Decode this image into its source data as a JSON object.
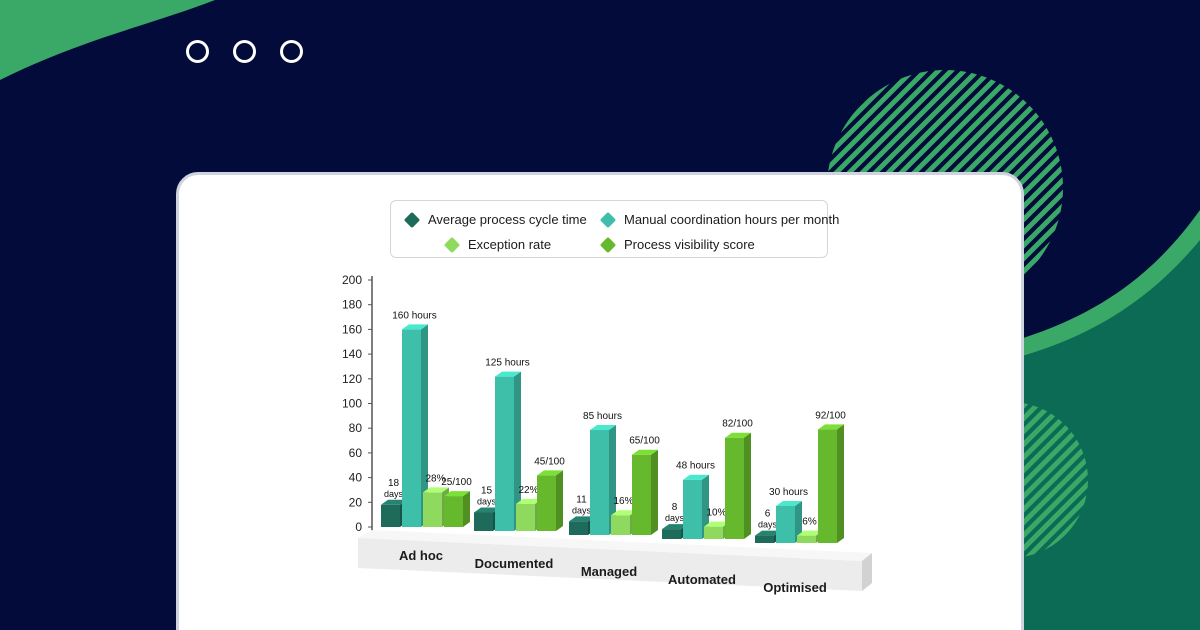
{
  "colors": {
    "background": "#030b3a",
    "accent_green": "#3aa866",
    "teal_block": "#0b6b55",
    "series": [
      "#1e6b5c",
      "#3dbfa9",
      "#8fd95e",
      "#66b82c"
    ]
  },
  "window": {
    "dots": [
      "circle",
      "circle",
      "circle"
    ]
  },
  "chart_data": {
    "type": "bar",
    "categories": [
      "Ad hoc",
      "Documented",
      "Managed",
      "Automated",
      "Optimised"
    ],
    "ylim": [
      0,
      200
    ],
    "yticks": [
      0,
      20,
      40,
      60,
      80,
      100,
      120,
      140,
      160,
      180,
      200
    ],
    "series": [
      {
        "name": "Average process cycle time",
        "values": [
          18,
          15,
          11,
          8,
          6
        ],
        "labels": [
          "18 days",
          "15 days",
          "11 days",
          "8 days",
          "6 days"
        ]
      },
      {
        "name": "Manual coordination hours per month",
        "values": [
          160,
          125,
          85,
          48,
          30
        ],
        "labels": [
          "160 hours",
          "125 hours",
          "85 hours",
          "48 hours",
          "30 hours"
        ]
      },
      {
        "name": "Exception rate",
        "values": [
          28,
          22,
          16,
          10,
          6
        ],
        "labels": [
          "28%",
          "22%",
          "16%",
          "10%",
          "6%"
        ]
      },
      {
        "name": "Process visibility score",
        "values": [
          25,
          45,
          65,
          82,
          92
        ],
        "labels": [
          "25/100",
          "45/100",
          "65/100",
          "82/100",
          "92/100"
        ]
      }
    ],
    "legend_position": "top"
  }
}
